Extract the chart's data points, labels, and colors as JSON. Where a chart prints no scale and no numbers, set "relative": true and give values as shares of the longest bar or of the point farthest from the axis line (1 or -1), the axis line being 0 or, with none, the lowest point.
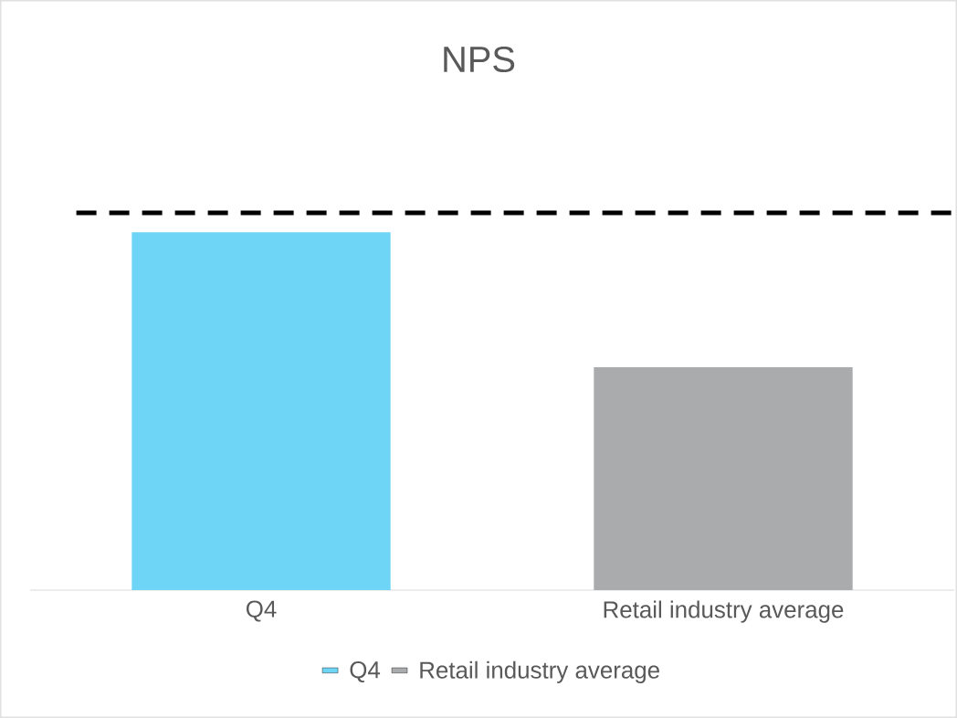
{
  "chart_data": {
    "type": "bar",
    "title": "NPS",
    "relative": true,
    "categories": [
      "Q4",
      "Retail industry average"
    ],
    "series": [
      {
        "name": "Q4",
        "color": "#6fd5f6",
        "values": [
          1,
          null
        ]
      },
      {
        "name": "Retail industry average",
        "color": "#a9abac",
        "values": [
          null,
          0.623
        ]
      }
    ],
    "ref_lines": [
      {
        "axis": "y",
        "value": 1.054,
        "color": "#000000",
        "line_style": "dashed"
      }
    ],
    "legend": "bottom"
  }
}
